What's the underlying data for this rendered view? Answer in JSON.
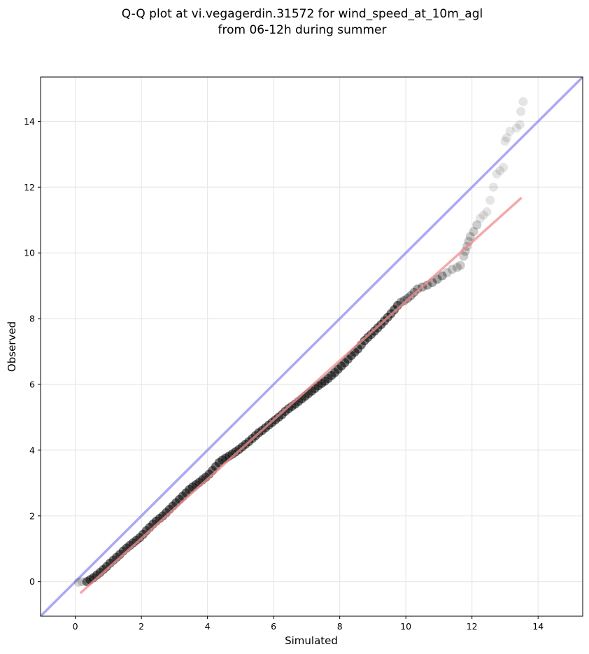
{
  "chart_data": {
    "type": "scatter",
    "title": [
      "Q-Q plot at vi.vegagerdin.31572 for wind_speed_at_10m_agl",
      "from 06-12h during summer"
    ],
    "xlabel": "Simulated",
    "ylabel": "Observed",
    "xlim": [
      -1.05,
      15.35
    ],
    "ylim": [
      -1.05,
      15.35
    ],
    "xticks": [
      0,
      2,
      4,
      6,
      8,
      10,
      12,
      14
    ],
    "yticks": [
      0,
      2,
      4,
      6,
      8,
      10,
      12,
      14
    ],
    "xtick_labels": [
      "0",
      "2",
      "4",
      "6",
      "8",
      "10",
      "12",
      "14"
    ],
    "ytick_labels": [
      "0",
      "2",
      "4",
      "6",
      "8",
      "10",
      "12",
      "14"
    ],
    "grid": true,
    "reference_line": {
      "color": "#8c8cf0",
      "slope": 1,
      "intercept": 0
    },
    "fit_line": {
      "color": "#f08c8c",
      "x": [
        0.15,
        13.5
      ],
      "y": [
        -0.35,
        11.68
      ]
    },
    "point_color": "#000000",
    "quantile_points": [
      [
        0.1,
        -0.02
      ],
      [
        0.2,
        0.0
      ],
      [
        0.35,
        0.0
      ],
      [
        0.45,
        0.06
      ],
      [
        0.55,
        0.12
      ],
      [
        0.65,
        0.2
      ],
      [
        0.75,
        0.28
      ],
      [
        0.85,
        0.37
      ],
      [
        0.95,
        0.46
      ],
      [
        1.05,
        0.56
      ],
      [
        1.15,
        0.65
      ],
      [
        1.25,
        0.74
      ],
      [
        1.35,
        0.83
      ],
      [
        1.45,
        0.93
      ],
      [
        1.55,
        1.02
      ],
      [
        1.65,
        1.1
      ],
      [
        1.75,
        1.18
      ],
      [
        1.85,
        1.26
      ],
      [
        1.95,
        1.34
      ],
      [
        2.05,
        1.44
      ],
      [
        2.15,
        1.55
      ],
      [
        2.25,
        1.65
      ],
      [
        2.35,
        1.75
      ],
      [
        2.45,
        1.84
      ],
      [
        2.55,
        1.92
      ],
      [
        2.65,
        2.0
      ],
      [
        2.75,
        2.1
      ],
      [
        2.85,
        2.2
      ],
      [
        2.95,
        2.3
      ],
      [
        3.05,
        2.4
      ],
      [
        3.15,
        2.5
      ],
      [
        3.25,
        2.6
      ],
      [
        3.35,
        2.7
      ],
      [
        3.45,
        2.8
      ],
      [
        3.55,
        2.88
      ],
      [
        3.65,
        2.95
      ],
      [
        3.75,
        3.02
      ],
      [
        3.85,
        3.1
      ],
      [
        3.95,
        3.18
      ],
      [
        4.05,
        3.27
      ],
      [
        4.15,
        3.38
      ],
      [
        4.25,
        3.5
      ],
      [
        4.35,
        3.62
      ],
      [
        4.45,
        3.7
      ],
      [
        4.55,
        3.76
      ],
      [
        4.65,
        3.82
      ],
      [
        4.75,
        3.88
      ],
      [
        4.85,
        3.95
      ],
      [
        4.95,
        4.02
      ],
      [
        5.05,
        4.1
      ],
      [
        5.15,
        4.18
      ],
      [
        5.25,
        4.26
      ],
      [
        5.35,
        4.35
      ],
      [
        5.45,
        4.44
      ],
      [
        5.55,
        4.53
      ],
      [
        5.65,
        4.6
      ],
      [
        5.75,
        4.68
      ],
      [
        5.85,
        4.76
      ],
      [
        5.95,
        4.84
      ],
      [
        6.05,
        4.92
      ],
      [
        6.15,
        5.0
      ],
      [
        6.25,
        5.08
      ],
      [
        6.35,
        5.18
      ],
      [
        6.45,
        5.26
      ],
      [
        6.55,
        5.33
      ],
      [
        6.65,
        5.4
      ],
      [
        6.75,
        5.48
      ],
      [
        6.85,
        5.56
      ],
      [
        6.95,
        5.64
      ],
      [
        7.05,
        5.72
      ],
      [
        7.15,
        5.8
      ],
      [
        7.25,
        5.88
      ],
      [
        7.35,
        5.96
      ],
      [
        7.45,
        6.03
      ],
      [
        7.55,
        6.1
      ],
      [
        7.65,
        6.18
      ],
      [
        7.75,
        6.27
      ],
      [
        7.85,
        6.36
      ],
      [
        7.95,
        6.46
      ],
      [
        8.05,
        6.56
      ],
      [
        8.15,
        6.66
      ],
      [
        8.25,
        6.77
      ],
      [
        8.35,
        6.88
      ],
      [
        8.45,
        6.98
      ],
      [
        8.55,
        7.08
      ],
      [
        8.65,
        7.2
      ],
      [
        8.75,
        7.33
      ],
      [
        8.85,
        7.43
      ],
      [
        8.95,
        7.52
      ],
      [
        9.05,
        7.62
      ],
      [
        9.15,
        7.72
      ],
      [
        9.25,
        7.82
      ],
      [
        9.35,
        7.93
      ],
      [
        9.45,
        8.04
      ],
      [
        9.55,
        8.15
      ],
      [
        9.65,
        8.27
      ],
      [
        9.75,
        8.4
      ],
      [
        9.85,
        8.5
      ],
      [
        9.95,
        8.55
      ],
      [
        10.05,
        8.62
      ],
      [
        10.15,
        8.7
      ],
      [
        10.25,
        8.8
      ],
      [
        10.35,
        8.9
      ],
      [
        10.5,
        8.96
      ],
      [
        10.65,
        9.02
      ],
      [
        10.8,
        9.1
      ],
      [
        10.95,
        9.2
      ],
      [
        11.1,
        9.3
      ],
      [
        11.25,
        9.4
      ],
      [
        11.4,
        9.5
      ],
      [
        11.55,
        9.56
      ],
      [
        11.65,
        9.62
      ],
      [
        11.75,
        9.9
      ],
      [
        11.8,
        10.05
      ],
      [
        11.85,
        10.2
      ],
      [
        11.9,
        10.35
      ],
      [
        11.95,
        10.5
      ],
      [
        12.05,
        10.65
      ],
      [
        12.15,
        10.85
      ],
      [
        12.25,
        11.05
      ],
      [
        12.35,
        11.15
      ],
      [
        12.45,
        11.25
      ],
      [
        12.55,
        11.6
      ],
      [
        12.65,
        12.0
      ],
      [
        12.75,
        12.4
      ],
      [
        12.85,
        12.5
      ],
      [
        12.95,
        12.6
      ],
      [
        13.0,
        13.4
      ],
      [
        13.05,
        13.5
      ],
      [
        13.15,
        13.7
      ],
      [
        13.35,
        13.8
      ],
      [
        13.45,
        13.9
      ],
      [
        13.48,
        14.3
      ],
      [
        13.55,
        14.6
      ]
    ]
  }
}
